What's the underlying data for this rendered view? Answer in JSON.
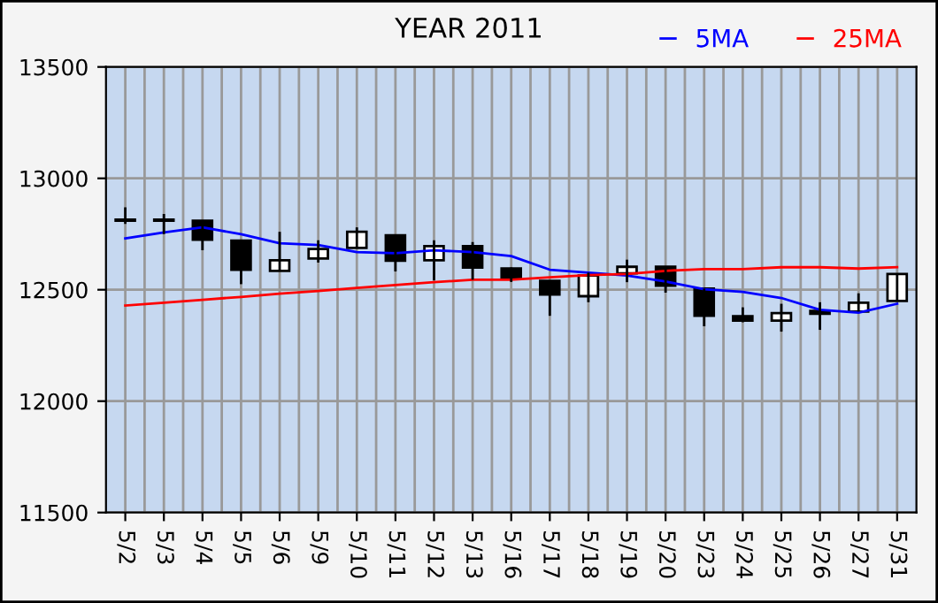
{
  "chart_data": {
    "type": "candlestick",
    "title": "YEAR 2011",
    "categories": [
      "5/2",
      "5/3",
      "5/4",
      "5/5",
      "5/6",
      "5/9",
      "5/10",
      "5/11",
      "5/12",
      "5/13",
      "5/16",
      "5/17",
      "5/18",
      "5/19",
      "5/20",
      "5/23",
      "5/24",
      "5/25",
      "5/26",
      "5/27",
      "5/31"
    ],
    "ohlc": [
      [
        12810,
        12870,
        12795,
        12815
      ],
      [
        12810,
        12840,
        12750,
        12815
      ],
      [
        12810,
        12810,
        12677,
        12725
      ],
      [
        12720,
        12720,
        12525,
        12590
      ],
      [
        12585,
        12760,
        12585,
        12632
      ],
      [
        12640,
        12722,
        12622,
        12683
      ],
      [
        12688,
        12780,
        12688,
        12760
      ],
      [
        12744,
        12744,
        12582,
        12630
      ],
      [
        12632,
        12722,
        12542,
        12696
      ],
      [
        12696,
        12714,
        12545,
        12600
      ],
      [
        12595,
        12600,
        12535,
        12550
      ],
      [
        12540,
        12540,
        12383,
        12479
      ],
      [
        12471,
        12577,
        12444,
        12564
      ],
      [
        12574,
        12635,
        12534,
        12603
      ],
      [
        12603,
        12603,
        12487,
        12518
      ],
      [
        12505,
        12505,
        12336,
        12383
      ],
      [
        12381,
        12421,
        12354,
        12361
      ],
      [
        12361,
        12437,
        12312,
        12395
      ],
      [
        12405,
        12444,
        12320,
        12392
      ],
      [
        12402,
        12484,
        12402,
        12442
      ],
      [
        12450,
        12571,
        12450,
        12571
      ]
    ],
    "series": [
      {
        "name": "5MA",
        "type": "line",
        "color": "#0000ff",
        "values": [
          12730,
          12757,
          12780,
          12749,
          12709,
          12701,
          12669,
          12664,
          12677,
          12669,
          12651,
          12590,
          12577,
          12564,
          12537,
          12502,
          12490,
          12463,
          12410,
          12397,
          12437
        ]
      },
      {
        "name": "25MA",
        "type": "line",
        "color": "#ff0000",
        "values": [
          12429,
          12442,
          12455,
          12468,
          12482,
          12494,
          12508,
          12521,
          12534,
          12545,
          12545,
          12556,
          12566,
          12571,
          12585,
          12593,
          12593,
          12601,
          12601,
          12595,
          12601
        ]
      }
    ],
    "ylim": [
      11500,
      13500
    ],
    "yticks": [
      11500,
      12000,
      12500,
      13000,
      13500
    ],
    "grid": true,
    "legend": "top right"
  }
}
